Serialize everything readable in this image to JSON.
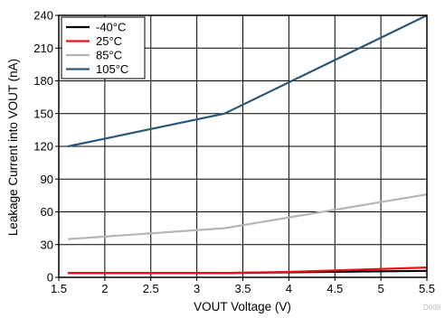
{
  "chart_data": {
    "type": "line",
    "xlabel": "VOUT Voltage (V)",
    "ylabel": "Leakage Current into VOUT (nA)",
    "xlim": [
      1.5,
      5.5
    ],
    "ylim": [
      0,
      240
    ],
    "x_ticks": [
      1.5,
      2,
      2.5,
      3,
      3.5,
      4,
      4.5,
      5,
      5.5
    ],
    "y_ticks": [
      0,
      30,
      60,
      90,
      120,
      150,
      180,
      210,
      240
    ],
    "x_tick_labels": [
      "1.5",
      "2",
      "2.5",
      "3",
      "3.5",
      "4",
      "4.5",
      "5",
      "5.5"
    ],
    "y_tick_labels": [
      "0",
      "30",
      "60",
      "90",
      "120",
      "150",
      "180",
      "210",
      "240"
    ],
    "grid": true,
    "legend_position": "top-left",
    "footnote": "D009",
    "series": [
      {
        "name": "-40°C",
        "color": "#000000",
        "x": [
          1.6,
          3.3,
          5.5
        ],
        "y": [
          4,
          4,
          6
        ]
      },
      {
        "name": "25°C",
        "color": "#e8101a",
        "x": [
          1.6,
          3.3,
          4.0,
          5.5
        ],
        "y": [
          4,
          4,
          5,
          9
        ]
      },
      {
        "name": "85°C",
        "color": "#b5b5b5",
        "x": [
          1.6,
          3.3,
          5.5
        ],
        "y": [
          35,
          45,
          76
        ]
      },
      {
        "name": "105°C",
        "color": "#2a5878",
        "x": [
          1.6,
          3.3,
          5.5
        ],
        "y": [
          120,
          150,
          240
        ]
      }
    ]
  }
}
